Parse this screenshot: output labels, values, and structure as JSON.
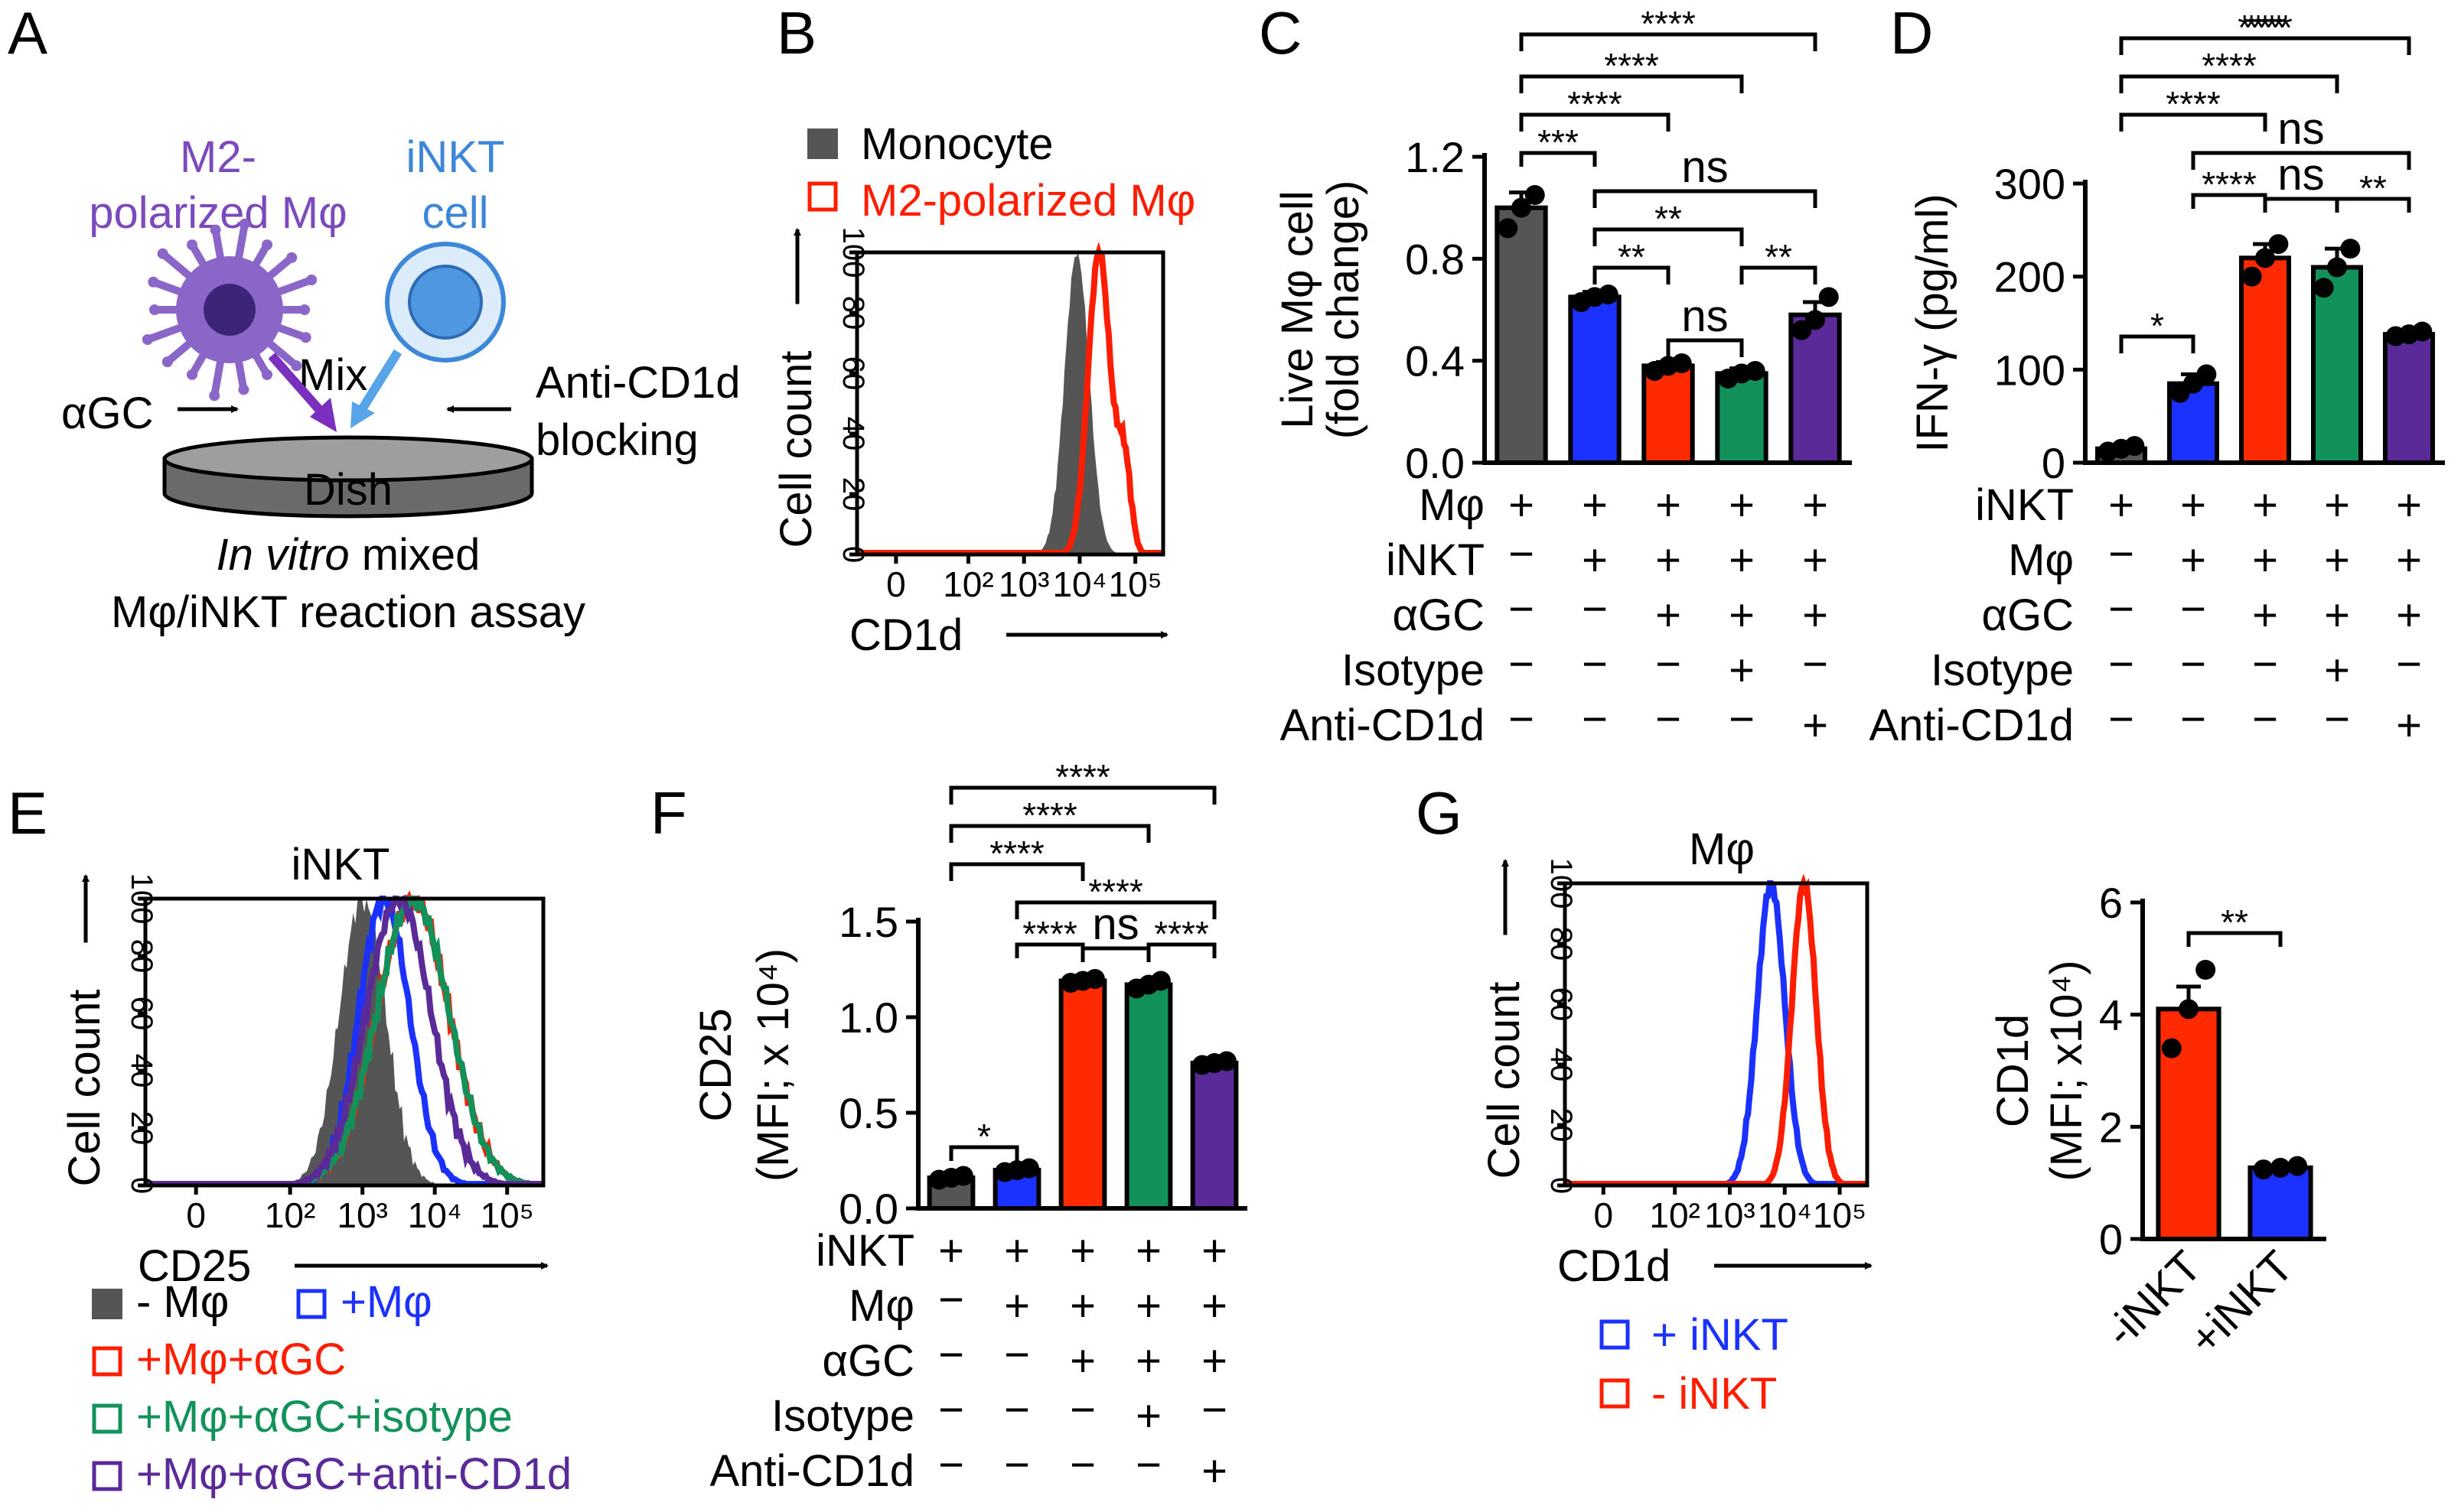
{
  "panel_letters": [
    "A",
    "B",
    "C",
    "D",
    "E",
    "F",
    "G"
  ],
  "colors": {
    "grey": "#555555",
    "blue": "#1a31ff",
    "red": "#ff2a00",
    "green": "#12925a",
    "purple": "#5b2a99",
    "mphi": "#7b4bbd",
    "inkt": "#3d86d8",
    "red_line": "#ff1d00"
  },
  "schematic": {
    "m2_label_line1": "M2-",
    "m2_label_line2": "polarized Mφ",
    "inkt_label_line1": "iNKT",
    "inkt_label_line2": "cell",
    "mix_label": "Mix",
    "agc_label": "αGC",
    "anti_label_line1": "Anti-CD1d",
    "anti_label_line2": "blocking",
    "dish_label": "Dish",
    "caption_italic": "In vitro",
    "caption_rest": " mixed",
    "caption_line2": "Mφ/iNKT reaction assay"
  },
  "chart_data": [
    {
      "panel": "B",
      "type": "histogram",
      "legend": [
        "Monocyte",
        "M2-polarized Mφ"
      ],
      "xlabel": "CD1d",
      "ylabel": "Cell count",
      "yticks": [
        "0",
        "20",
        "40",
        "60",
        "80",
        "100"
      ],
      "xticks": [
        "0",
        "10²",
        "10³",
        "10⁴",
        "10⁵"
      ],
      "series": [
        {
          "name": "Monocyte",
          "style": "filled",
          "peak_log": 3.95
        },
        {
          "name": "M2-polarized Mφ",
          "style": "outline",
          "peak_log": 4.35
        }
      ]
    },
    {
      "panel": "C",
      "type": "bar",
      "ylabel_line1": "Live Mφ cell",
      "ylabel_line2": "(fold change)",
      "ylim": [
        0,
        1.2
      ],
      "yticks": [
        "0.0",
        "0.4",
        "0.8",
        "1.2"
      ],
      "values": [
        1.0,
        0.65,
        0.38,
        0.35,
        0.58
      ],
      "errors": [
        0.06,
        0.02,
        0.015,
        0.02,
        0.05
      ],
      "points": [
        [
          0.92,
          1.0,
          1.05
        ],
        [
          0.63,
          0.65,
          0.66
        ],
        [
          0.36,
          0.38,
          0.39
        ],
        [
          0.33,
          0.35,
          0.36
        ],
        [
          0.52,
          0.56,
          0.65
        ]
      ],
      "row_labels": [
        "Mφ",
        "iNKT",
        "αGC",
        "Isotype",
        "Anti-CD1d"
      ],
      "conditions": [
        [
          "+",
          "+",
          "+",
          "+",
          "+"
        ],
        [
          "−",
          "+",
          "+",
          "+",
          "+"
        ],
        [
          "−",
          "−",
          "+",
          "+",
          "+"
        ],
        [
          "−",
          "−",
          "−",
          "+",
          "−"
        ],
        [
          "−",
          "−",
          "−",
          "−",
          "+"
        ]
      ],
      "significance": [
        "***",
        "****",
        "****",
        "****",
        "ns",
        "**",
        "**",
        "ns",
        "**"
      ]
    },
    {
      "panel": "D",
      "type": "bar",
      "ylabel": "IFN-γ (pg/ml)",
      "ylim": [
        0,
        300
      ],
      "yticks": [
        "0",
        "100",
        "200",
        "300"
      ],
      "values": [
        15,
        85,
        220,
        210,
        138
      ],
      "errors": [
        3,
        10,
        15,
        20,
        3
      ],
      "points": [
        [
          12,
          15,
          18
        ],
        [
          75,
          85,
          95
        ],
        [
          200,
          220,
          235
        ],
        [
          188,
          210,
          230
        ],
        [
          136,
          138,
          141
        ]
      ],
      "row_labels": [
        "iNKT",
        "Mφ",
        "αGC",
        "Isotype",
        "Anti-CD1d"
      ],
      "conditions": [
        [
          "+",
          "+",
          "+",
          "+",
          "+"
        ],
        [
          "−",
          "+",
          "+",
          "+",
          "+"
        ],
        [
          "−",
          "−",
          "+",
          "+",
          "+"
        ],
        [
          "−",
          "−",
          "−",
          "+",
          "−"
        ],
        [
          "−",
          "−",
          "−",
          "−",
          "+"
        ]
      ],
      "significance": [
        "*",
        "****",
        "ns",
        "**",
        "ns",
        "****",
        "****",
        "****",
        "***"
      ]
    },
    {
      "panel": "E",
      "type": "histogram",
      "title": "iNKT",
      "xlabel": "CD25",
      "ylabel": "Cell count",
      "yticks": [
        "0",
        "20",
        "40",
        "60",
        "80",
        "100"
      ],
      "xticks": [
        "0",
        "10²",
        "10³",
        "10⁴",
        "10⁵"
      ],
      "legend": [
        "- Mφ",
        "+Mφ",
        "+Mφ+αGC",
        "+Mφ+αGC+isotype",
        "+Mφ+αGC+anti-CD1d"
      ],
      "series": [
        {
          "name": "- Mφ",
          "style": "filled",
          "peak_log": 3.0
        },
        {
          "name": "+Mφ",
          "style": "outline",
          "peak_log": 3.3
        },
        {
          "name": "+Mφ+αGC",
          "style": "outline",
          "peak_log": 3.7
        },
        {
          "name": "+Mφ+αGC+isotype",
          "style": "outline",
          "peak_log": 3.7
        },
        {
          "name": "+Mφ+αGC+anti-CD1d",
          "style": "outline",
          "peak_log": 3.5
        }
      ]
    },
    {
      "panel": "F",
      "type": "bar",
      "ylabel_line1": "CD25",
      "ylabel_line2": "(MFI; x 10⁴)",
      "ylim": [
        0,
        1.5
      ],
      "yticks": [
        "0.0",
        "0.5",
        "1.0",
        "1.5"
      ],
      "values": [
        0.16,
        0.2,
        1.19,
        1.17,
        0.76
      ],
      "errors": [
        0.01,
        0.01,
        0.01,
        0.02,
        0.01
      ],
      "points": [
        [
          0.15,
          0.16,
          0.17
        ],
        [
          0.19,
          0.2,
          0.21
        ],
        [
          1.18,
          1.19,
          1.2
        ],
        [
          1.15,
          1.17,
          1.19
        ],
        [
          0.75,
          0.76,
          0.77
        ]
      ],
      "row_labels": [
        "iNKT",
        "Mφ",
        "αGC",
        "Isotype",
        "Anti-CD1d"
      ],
      "conditions": [
        [
          "+",
          "+",
          "+",
          "+",
          "+"
        ],
        [
          "−",
          "+",
          "+",
          "+",
          "+"
        ],
        [
          "−",
          "−",
          "+",
          "+",
          "+"
        ],
        [
          "−",
          "−",
          "−",
          "+",
          "−"
        ],
        [
          "−",
          "−",
          "−",
          "−",
          "+"
        ]
      ],
      "significance": [
        "*",
        "****",
        "ns",
        "****",
        "****",
        "****",
        "****",
        "****"
      ]
    },
    {
      "panel": "G1",
      "type": "histogram",
      "title": "Mφ",
      "xlabel": "CD1d",
      "ylabel": "Cell count",
      "yticks": [
        "0",
        "20",
        "40",
        "60",
        "80",
        "100"
      ],
      "xticks": [
        "0",
        "10²",
        "10³",
        "10⁴",
        "10⁵"
      ],
      "legend": [
        "+ iNKT",
        "- iNKT"
      ],
      "series": [
        {
          "name": "+ iNKT",
          "style": "outline",
          "peak_log": 3.75
        },
        {
          "name": "- iNKT",
          "style": "outline",
          "peak_log": 4.35
        }
      ]
    },
    {
      "panel": "G2",
      "type": "bar",
      "ylabel_line1": "CD1d",
      "ylabel_line2": "(MFI; x10⁴)",
      "ylim": [
        0,
        6
      ],
      "yticks": [
        "0",
        "2",
        "4",
        "6"
      ],
      "categories": [
        "-iNKT",
        "+iNKT"
      ],
      "values": [
        4.1,
        1.27
      ],
      "errors": [
        0.4,
        0.03
      ],
      "points": [
        [
          3.4,
          4.1,
          4.8
        ],
        [
          1.24,
          1.27,
          1.3
        ]
      ],
      "significance": [
        "**"
      ]
    }
  ]
}
